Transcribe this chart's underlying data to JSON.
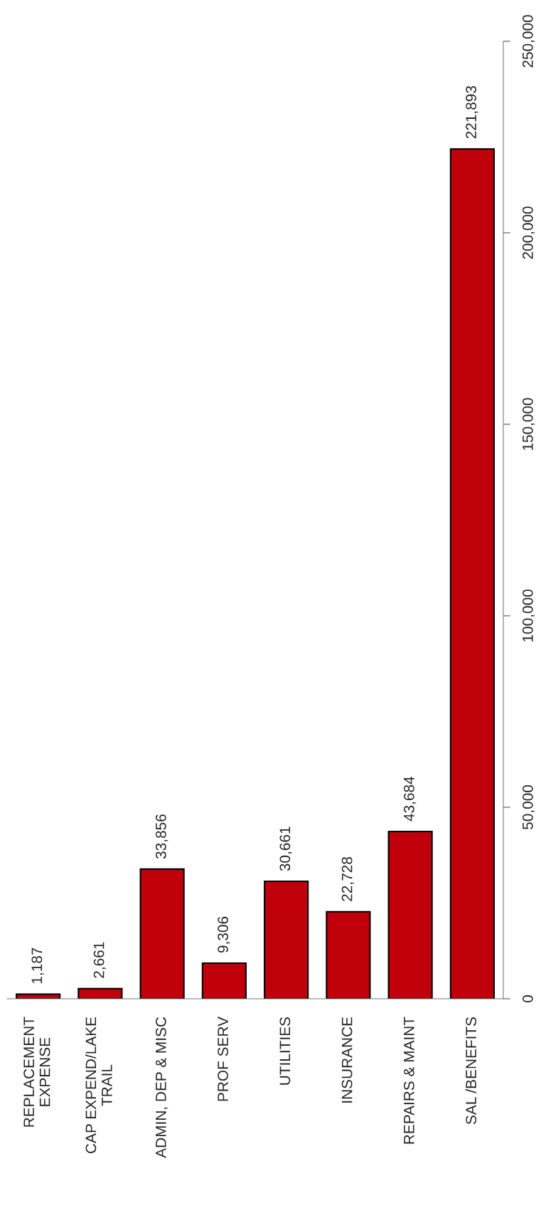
{
  "chart_data": {
    "type": "bar",
    "categories": [
      "REPLACEMENT\nEXPENSE",
      "CAP EXPEND/LAKE\nTRAIL",
      "ADMIN, DEP & MISC",
      "PROF SERV",
      "UTILITIES",
      "INSURANCE",
      "REPAIRS & MAINT",
      "SAL /BENEFITS"
    ],
    "values": [
      1187,
      2661,
      33856,
      9306,
      30661,
      22728,
      43684,
      221893
    ],
    "color": "#c0000b",
    "ylim": [
      0,
      250000
    ],
    "yticks": [
      {
        "value": 0,
        "label": "0"
      },
      {
        "value": 50000,
        "label": "50,000"
      },
      {
        "value": 100000,
        "label": "100,000"
      },
      {
        "value": 150000,
        "label": "150,000"
      },
      {
        "value": 200000,
        "label": "200,000"
      },
      {
        "value": 250000,
        "label": "250,000"
      }
    ],
    "value_labels": [
      "1,187",
      "2,661",
      "33,856",
      "9,306",
      "30,661",
      "22,728",
      "43,684",
      "221,893"
    ],
    "grid": false,
    "legend": false
  }
}
